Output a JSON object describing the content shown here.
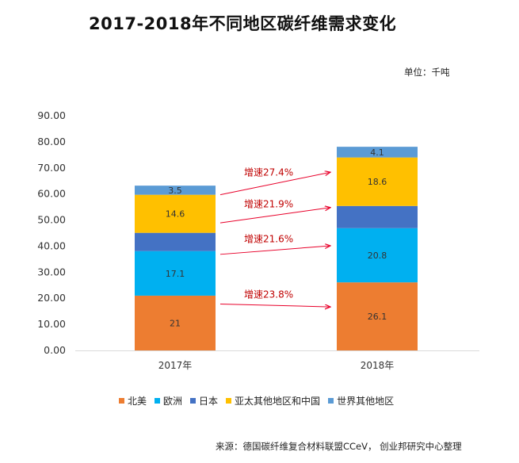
{
  "chart_data": {
    "type": "bar",
    "stacked": true,
    "title": "2017-2018年不同地区碳纤维需求变化",
    "unit": "单位：千吨",
    "source": "来源：德国碳纤维复合材料联盟CCeV， 创业邦研究中心整理",
    "categories": [
      "2017年",
      "2018年"
    ],
    "ylim": [
      0,
      90
    ],
    "yticks": [
      "0.00",
      "10.00",
      "20.00",
      "30.00",
      "40.00",
      "50.00",
      "60.00",
      "70.00",
      "80.00",
      "90.00"
    ],
    "grid": false,
    "legend_position": "bottom",
    "series": [
      {
        "name": "北美",
        "color": "#ED7D31",
        "values": [
          21,
          26.1
        ],
        "labels": [
          "21",
          "26.1"
        ]
      },
      {
        "name": "欧洲",
        "color": "#00B0F0",
        "values": [
          17.1,
          20.8
        ],
        "labels": [
          "17.1",
          "20.8"
        ]
      },
      {
        "name": "日本",
        "color": "#4472C4",
        "values": [
          7,
          8.5
        ],
        "labels": [
          "",
          ""
        ]
      },
      {
        "name": "亚太其他地区和中国",
        "color": "#FFC000",
        "values": [
          14.6,
          18.6
        ],
        "labels": [
          "14.6",
          "18.6"
        ]
      },
      {
        "name": "世界其他地区",
        "color": "#5B9BD5",
        "values": [
          3.5,
          4.1
        ],
        "labels": [
          "3.5",
          "4.1"
        ]
      }
    ],
    "annotations": [
      "增速23.8%",
      "增速21.6%",
      "增速21.9%",
      "增速27.4%"
    ]
  }
}
